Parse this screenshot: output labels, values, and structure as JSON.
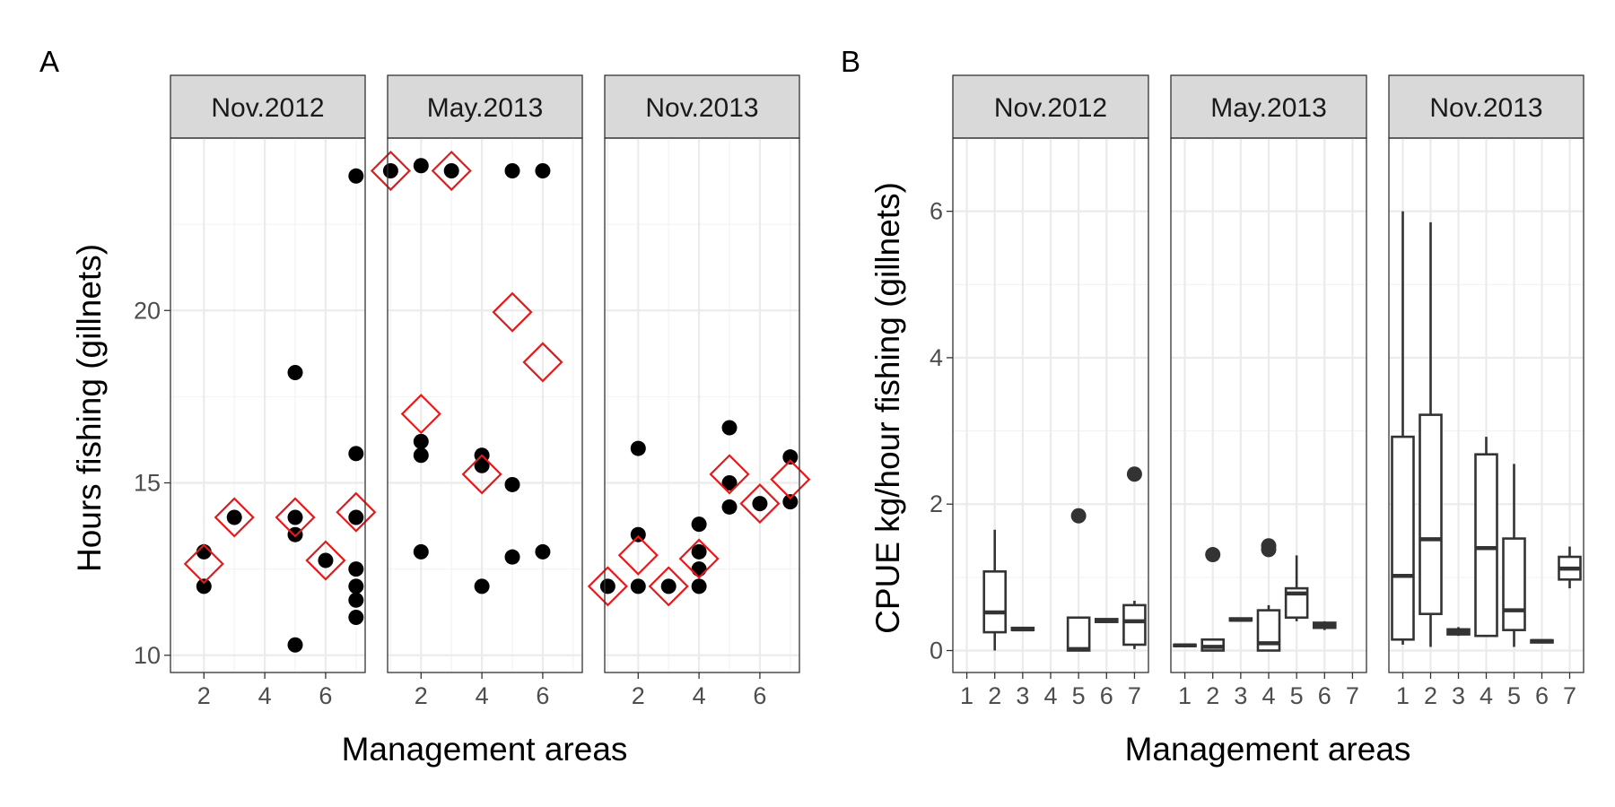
{
  "figure": {
    "width": 1800,
    "height": 900
  },
  "colors": {
    "points": "#000000",
    "diamonds": "#e31a1c",
    "strip_bg": "#d9d9d9",
    "grid": "#ebebeb",
    "box": "#333333"
  },
  "chart_data": [
    {
      "type": "scatter",
      "tag": "A",
      "xlabel": "Management areas",
      "ylabel": "Hours fishing (gillnets)",
      "xlim": [
        0.9,
        7.3
      ],
      "ylim": [
        9.5,
        25.0
      ],
      "xticks": [
        2,
        4,
        6
      ],
      "yticks": [
        10,
        15,
        20
      ],
      "facets": [
        {
          "label": "Nov.2012",
          "points": [
            [
              2,
              13.0
            ],
            [
              2,
              12.0
            ],
            [
              3,
              14.0
            ],
            [
              5,
              18.2
            ],
            [
              5,
              14.0
            ],
            [
              5,
              13.5
            ],
            [
              5,
              10.3
            ],
            [
              6,
              12.75
            ],
            [
              7,
              23.9
            ],
            [
              7,
              15.85
            ],
            [
              7,
              14.0
            ],
            [
              7,
              12.5
            ],
            [
              7,
              12.0
            ],
            [
              7,
              11.6
            ],
            [
              7,
              11.1
            ]
          ],
          "diamonds": [
            [
              2,
              12.65
            ],
            [
              3,
              14.0
            ],
            [
              5,
              14.0
            ],
            [
              6,
              12.75
            ],
            [
              7,
              14.15
            ]
          ]
        },
        {
          "label": "May.2013",
          "points": [
            [
              1,
              24.05
            ],
            [
              2,
              24.2
            ],
            [
              2,
              16.2
            ],
            [
              2,
              15.8
            ],
            [
              2,
              13.0
            ],
            [
              3,
              24.05
            ],
            [
              4,
              15.8
            ],
            [
              4,
              15.5
            ],
            [
              4,
              12.0
            ],
            [
              5,
              24.05
            ],
            [
              5,
              14.95
            ],
            [
              5,
              12.85
            ],
            [
              6,
              24.05
            ],
            [
              6,
              13.0
            ]
          ],
          "diamonds": [
            [
              1,
              24.05
            ],
            [
              2,
              17.0
            ],
            [
              3,
              24.05
            ],
            [
              4,
              15.25
            ],
            [
              5,
              19.95
            ],
            [
              6,
              18.5
            ]
          ]
        },
        {
          "label": "Nov.2013",
          "points": [
            [
              1,
              12.0
            ],
            [
              2,
              16.0
            ],
            [
              2,
              13.5
            ],
            [
              2,
              12.0
            ],
            [
              3,
              12.0
            ],
            [
              4,
              13.8
            ],
            [
              4,
              13.0
            ],
            [
              4,
              12.5
            ],
            [
              4,
              12.0
            ],
            [
              5,
              16.6
            ],
            [
              5,
              15.0
            ],
            [
              5,
              14.3
            ],
            [
              6,
              14.4
            ],
            [
              7,
              15.75
            ],
            [
              7,
              14.45
            ]
          ],
          "diamonds": [
            [
              1,
              12.0
            ],
            [
              2,
              12.9
            ],
            [
              3,
              12.0
            ],
            [
              4,
              12.8
            ],
            [
              5,
              15.25
            ],
            [
              6,
              14.4
            ],
            [
              7,
              15.1
            ]
          ]
        }
      ]
    },
    {
      "type": "box",
      "tag": "B",
      "xlabel": "Management areas",
      "ylabel": "CPUE kg/hour fishing (gillnets)",
      "xlim": [
        0.5,
        7.5
      ],
      "ylim": [
        -0.3,
        7.0
      ],
      "xticks": [
        1,
        2,
        3,
        4,
        5,
        6,
        7
      ],
      "yticks": [
        0,
        2,
        4,
        6
      ],
      "facets": [
        {
          "label": "Nov.2012",
          "boxes": [
            {
              "x": 2,
              "lower": 0.0,
              "q1": 0.25,
              "median": 0.52,
              "q3": 1.08,
              "upper": 1.65,
              "outliers": []
            },
            {
              "x": 3,
              "lower": 0.27,
              "q1": 0.28,
              "median": 0.29,
              "q3": 0.31,
              "upper": 0.32,
              "outliers": []
            },
            {
              "x": 5,
              "lower": 0.0,
              "q1": 0.0,
              "median": 0.02,
              "q3": 0.45,
              "upper": 0.46,
              "outliers": [
                1.84
              ]
            },
            {
              "x": 6,
              "lower": 0.38,
              "q1": 0.39,
              "median": 0.41,
              "q3": 0.43,
              "upper": 0.44,
              "outliers": []
            },
            {
              "x": 7,
              "lower": 0.02,
              "q1": 0.08,
              "median": 0.4,
              "q3": 0.62,
              "upper": 0.68,
              "outliers": [
                2.41
              ]
            }
          ]
        },
        {
          "label": "May.2013",
          "boxes": [
            {
              "x": 1,
              "lower": 0.05,
              "q1": 0.06,
              "median": 0.07,
              "q3": 0.08,
              "upper": 0.09,
              "outliers": []
            },
            {
              "x": 2,
              "lower": 0.0,
              "q1": 0.0,
              "median": 0.05,
              "q3": 0.15,
              "upper": 0.15,
              "outliers": [
                1.31
              ]
            },
            {
              "x": 3,
              "lower": 0.4,
              "q1": 0.41,
              "median": 0.42,
              "q3": 0.44,
              "upper": 0.45,
              "outliers": []
            },
            {
              "x": 4,
              "lower": 0.0,
              "q1": 0.0,
              "median": 0.1,
              "q3": 0.55,
              "upper": 0.62,
              "outliers": [
                1.38,
                1.43
              ]
            },
            {
              "x": 5,
              "lower": 0.4,
              "q1": 0.45,
              "median": 0.78,
              "q3": 0.85,
              "upper": 1.3,
              "outliers": []
            },
            {
              "x": 6,
              "lower": 0.28,
              "q1": 0.31,
              "median": 0.35,
              "q3": 0.38,
              "upper": 0.4,
              "outliers": []
            }
          ]
        },
        {
          "label": "Nov.2013",
          "boxes": [
            {
              "x": 1,
              "lower": 0.08,
              "q1": 0.15,
              "median": 1.02,
              "q3": 2.92,
              "upper": 6.0,
              "outliers": []
            },
            {
              "x": 2,
              "lower": 0.05,
              "q1": 0.5,
              "median": 1.52,
              "q3": 3.22,
              "upper": 5.85,
              "outliers": []
            },
            {
              "x": 3,
              "lower": 0.2,
              "q1": 0.22,
              "median": 0.26,
              "q3": 0.29,
              "upper": 0.32,
              "outliers": []
            },
            {
              "x": 4,
              "lower": 0.2,
              "q1": 0.2,
              "median": 1.4,
              "q3": 2.68,
              "upper": 2.92,
              "outliers": []
            },
            {
              "x": 5,
              "lower": 0.05,
              "q1": 0.28,
              "median": 0.55,
              "q3": 1.53,
              "upper": 2.55,
              "outliers": []
            },
            {
              "x": 6,
              "lower": 0.1,
              "q1": 0.11,
              "median": 0.13,
              "q3": 0.14,
              "upper": 0.15,
              "outliers": []
            },
            {
              "x": 7,
              "lower": 0.85,
              "q1": 0.97,
              "median": 1.12,
              "q3": 1.28,
              "upper": 1.42,
              "outliers": []
            }
          ]
        }
      ]
    }
  ]
}
